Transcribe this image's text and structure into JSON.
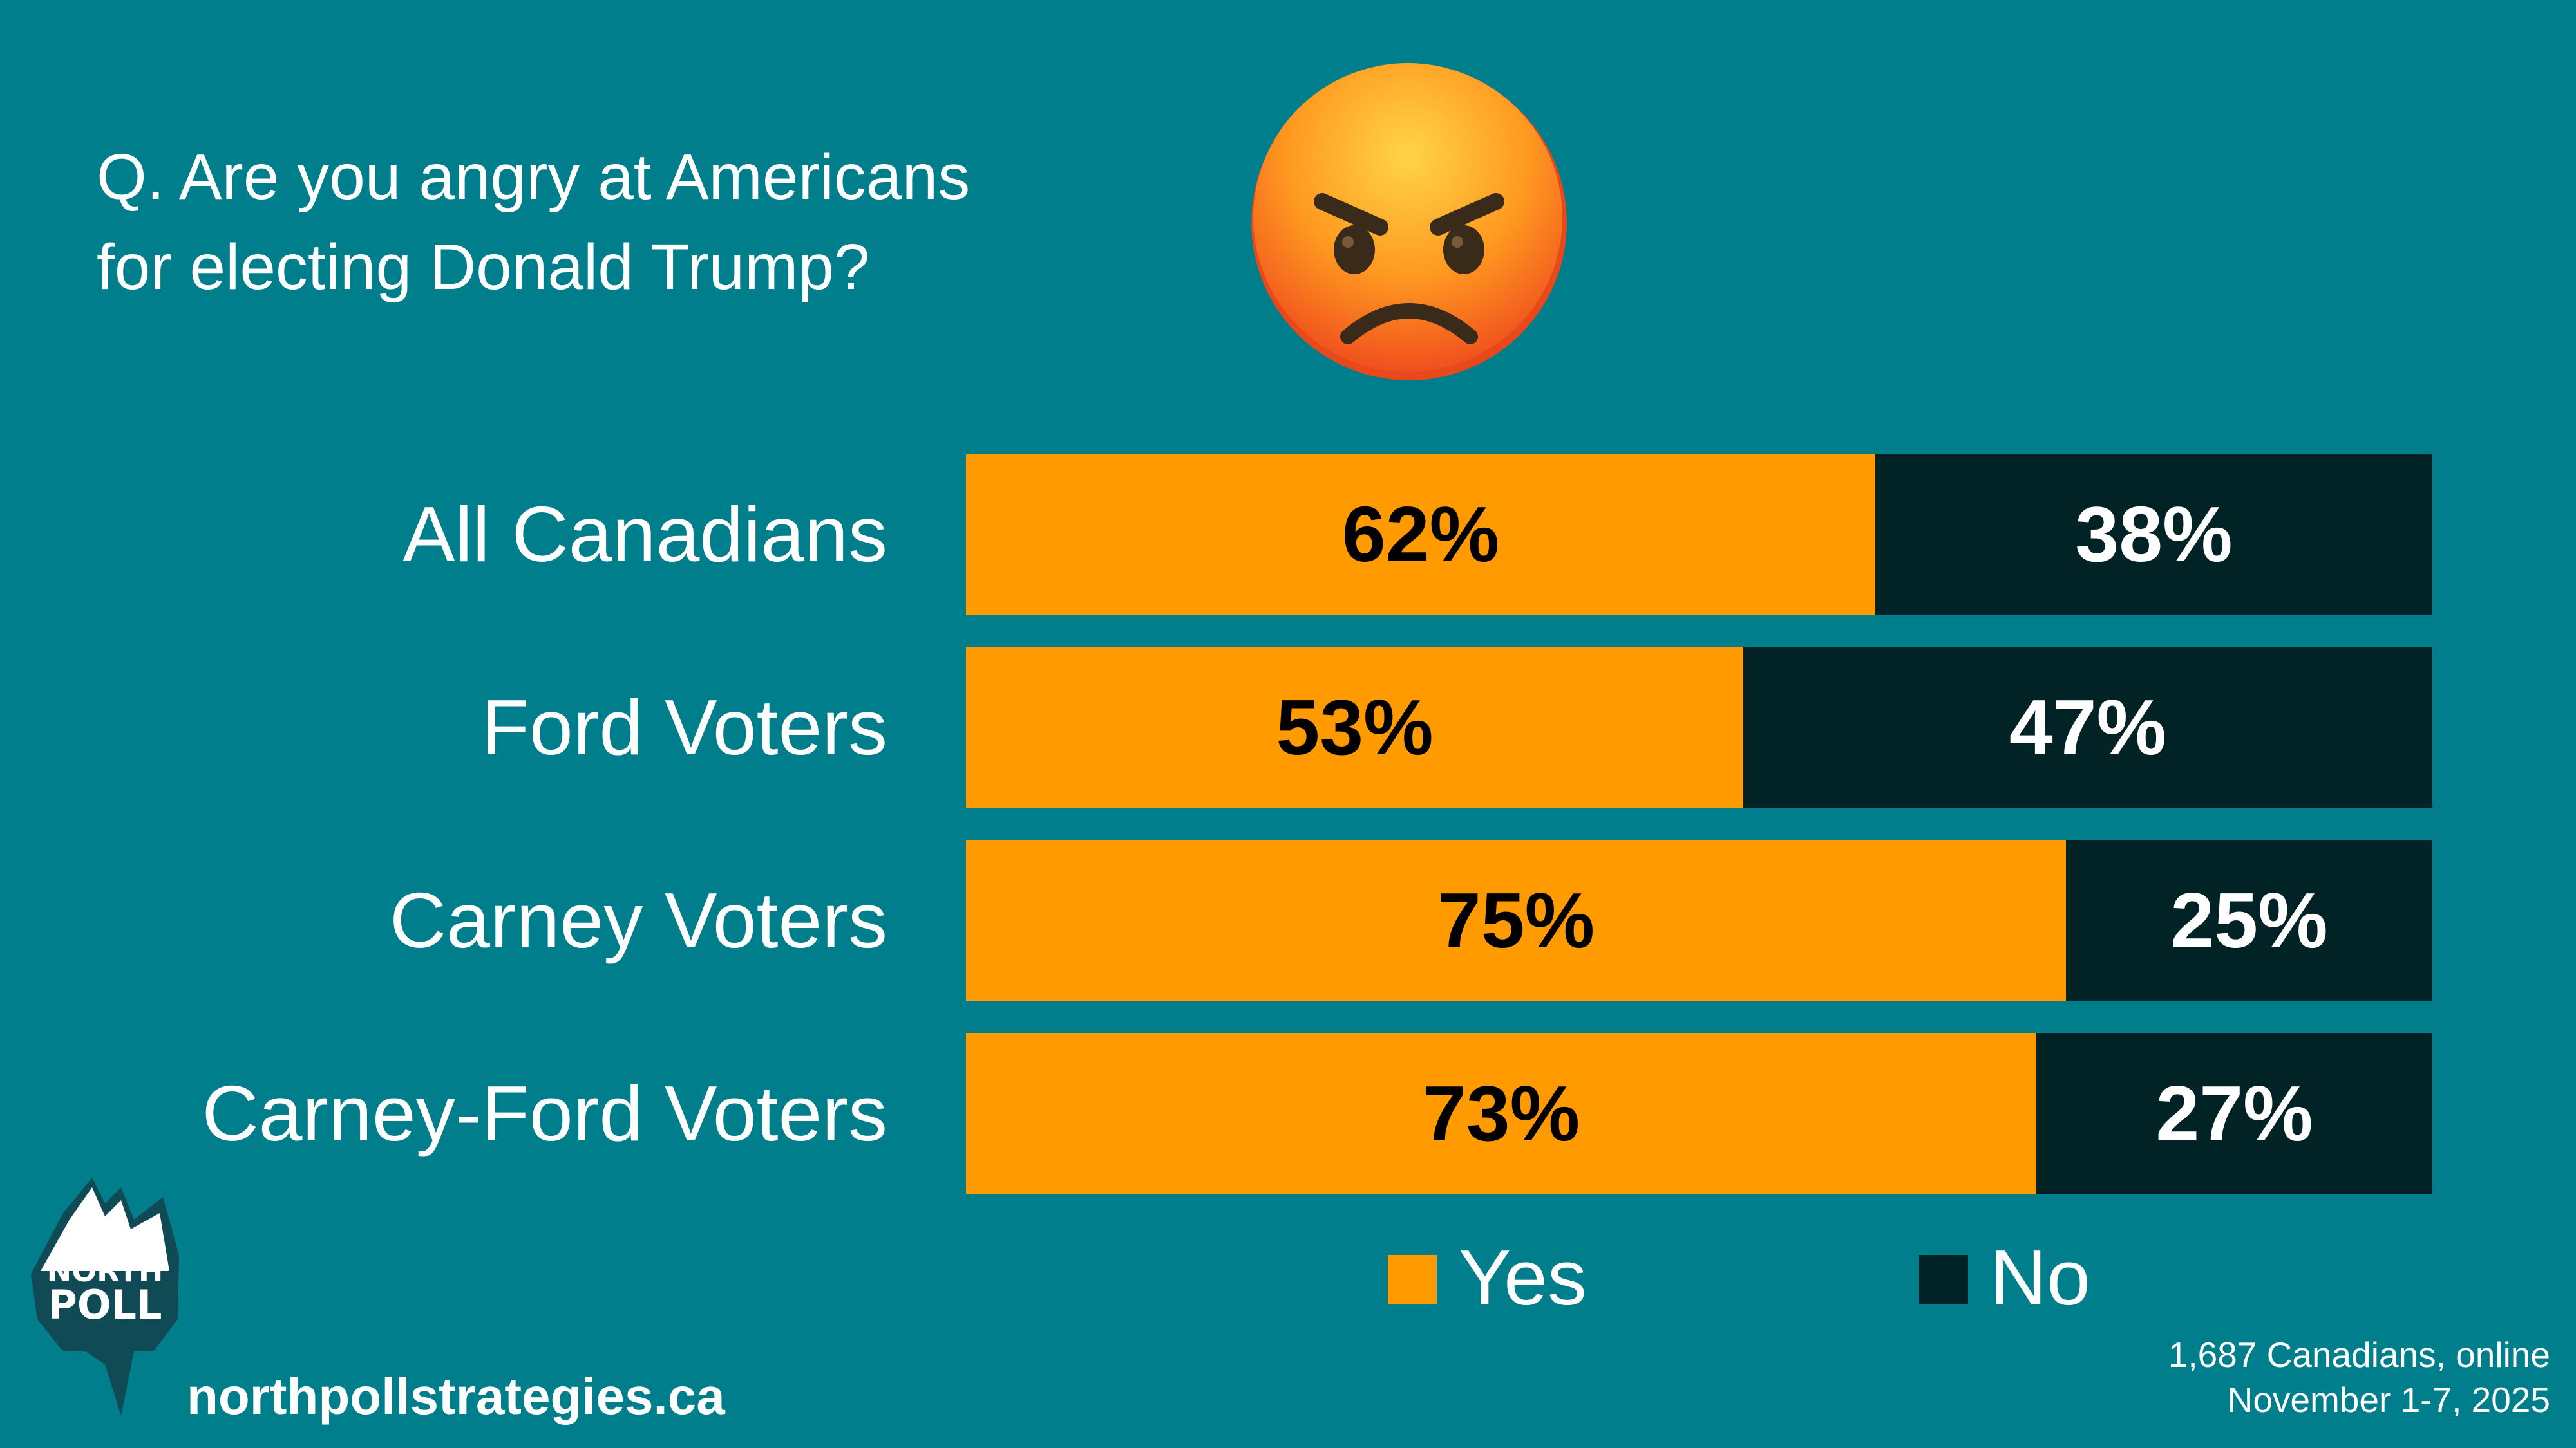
{
  "question": "Q. Are you angry at Americans\nfor electing Donald Trump?",
  "emoji": "angry-face",
  "chart_data": {
    "type": "bar",
    "orientation": "horizontal",
    "stacked": true,
    "categories": [
      "All Canadians",
      "Ford Voters",
      "Carney Voters",
      "Carney-Ford Voters"
    ],
    "series": [
      {
        "name": "Yes",
        "color": "#FF9A00",
        "values": [
          62,
          53,
          75,
          73
        ],
        "labels": [
          "62%",
          "53%",
          "75%",
          "73%"
        ]
      },
      {
        "name": "No",
        "color": "#012326",
        "values": [
          38,
          47,
          25,
          27
        ],
        "labels": [
          "38%",
          "47%",
          "25%",
          "27%"
        ]
      }
    ],
    "xlim": [
      0,
      100
    ],
    "grid": false,
    "legend": "bottom"
  },
  "legend": {
    "yes": "Yes",
    "no": "No"
  },
  "source": "1,687 Canadians, online\nNovember 1-7, 2025",
  "website": "northpollstrategies.ca",
  "logo": {
    "line1": "NORTH",
    "line2": "POLL"
  },
  "colors": {
    "background": "#007E8C",
    "yes": "#FF9A00",
    "no": "#012326"
  }
}
